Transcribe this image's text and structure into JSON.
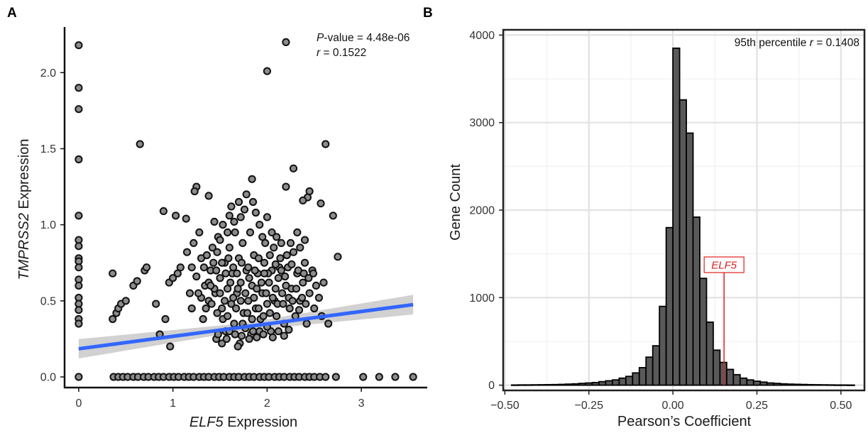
{
  "panels": {
    "a_label": "A",
    "b_label": "B"
  },
  "chart_data": [
    {
      "type": "scatter",
      "panel": "A",
      "xlabel_gene": "ELF5",
      "xlabel_suffix": " Expression",
      "ylabel_gene": "TMPRSS2",
      "ylabel_suffix": " Expression",
      "xlim": [
        -0.15,
        3.7
      ],
      "ylim": [
        -0.07,
        2.3
      ],
      "x_ticks": [
        0,
        1,
        2,
        3
      ],
      "x_tick_labels": [
        "0",
        "1",
        "2",
        "3"
      ],
      "y_ticks": [
        0.0,
        0.5,
        1.0,
        1.5,
        2.0
      ],
      "y_tick_labels": [
        "0.0",
        "0.5",
        "1.0",
        "1.5",
        "2.0"
      ],
      "annotation": {
        "p_prefix": "P",
        "p_suffix": "-value = 4.48e-06",
        "r_prefix": "r",
        "r_suffix": " = 0.1522"
      },
      "regression": {
        "x": [
          0,
          3.55
        ],
        "y": [
          0.185,
          0.475
        ],
        "color": "#3366ff",
        "ci_color": "#c9c9c9"
      },
      "point_fill": "#8c8c8c",
      "point_stroke": "#111111",
      "points": [
        [
          0,
          2.18
        ],
        [
          0,
          1.9
        ],
        [
          0,
          1.76
        ],
        [
          0,
          1.43
        ],
        [
          0,
          1.06
        ],
        [
          0,
          0.9
        ],
        [
          0,
          0.86
        ],
        [
          0,
          0.78
        ],
        [
          0,
          0.76
        ],
        [
          0,
          0.72
        ],
        [
          0,
          0.64
        ],
        [
          0,
          0.6
        ],
        [
          0,
          0.52
        ],
        [
          0,
          0.48
        ],
        [
          0,
          0.44
        ],
        [
          0,
          0.38
        ],
        [
          0,
          0.35
        ],
        [
          0,
          0.0
        ],
        [
          0.37,
          0.0
        ],
        [
          0.42,
          0.0
        ],
        [
          0.47,
          0.0
        ],
        [
          0.52,
          0.0
        ],
        [
          0.58,
          0.0
        ],
        [
          0.63,
          0.0
        ],
        [
          0.69,
          0.0
        ],
        [
          0.74,
          0.0
        ],
        [
          0.8,
          0.0
        ],
        [
          0.85,
          0.0
        ],
        [
          0.9,
          0.0
        ],
        [
          0.96,
          0.0
        ],
        [
          1.01,
          0.0
        ],
        [
          1.06,
          0.0
        ],
        [
          1.12,
          0.0
        ],
        [
          1.17,
          0.0
        ],
        [
          1.22,
          0.0
        ],
        [
          1.28,
          0.0
        ],
        [
          1.33,
          0.0
        ],
        [
          1.38,
          0.0
        ],
        [
          1.44,
          0.0
        ],
        [
          1.49,
          0.0
        ],
        [
          1.54,
          0.0
        ],
        [
          1.6,
          0.0
        ],
        [
          1.65,
          0.0
        ],
        [
          1.7,
          0.0
        ],
        [
          1.76,
          0.0
        ],
        [
          1.81,
          0.0
        ],
        [
          1.86,
          0.0
        ],
        [
          1.92,
          0.0
        ],
        [
          1.97,
          0.0
        ],
        [
          2.02,
          0.0
        ],
        [
          2.08,
          0.0
        ],
        [
          2.13,
          0.0
        ],
        [
          2.18,
          0.0
        ],
        [
          2.24,
          0.0
        ],
        [
          2.29,
          0.0
        ],
        [
          2.34,
          0.0
        ],
        [
          2.4,
          0.0
        ],
        [
          2.45,
          0.0
        ],
        [
          2.5,
          0.0
        ],
        [
          2.56,
          0.0
        ],
        [
          2.62,
          0.0
        ],
        [
          2.73,
          0.0
        ],
        [
          3.02,
          0.0
        ],
        [
          3.19,
          0.0
        ],
        [
          3.36,
          0.0
        ],
        [
          3.55,
          0.0
        ],
        [
          2.2,
          2.2
        ],
        [
          2.0,
          2.01
        ],
        [
          0.65,
          1.53
        ],
        [
          2.62,
          1.53
        ],
        [
          2.28,
          1.37
        ],
        [
          1.84,
          1.3
        ],
        [
          2.2,
          1.25
        ],
        [
          1.25,
          1.25
        ],
        [
          1.23,
          1.22
        ],
        [
          1.38,
          1.19
        ],
        [
          2.45,
          1.22
        ],
        [
          2.43,
          1.18
        ],
        [
          2.38,
          1.16
        ],
        [
          0.9,
          1.09
        ],
        [
          1.03,
          1.06
        ],
        [
          1.6,
          1.06
        ],
        [
          2.57,
          1.14
        ],
        [
          2.7,
          1.06
        ],
        [
          1.14,
          1.04
        ],
        [
          1.65,
          1.02
        ],
        [
          0.36,
          0.38
        ],
        [
          0.4,
          0.42
        ],
        [
          0.42,
          0.45
        ],
        [
          0.45,
          0.48
        ],
        [
          0.5,
          0.5
        ],
        [
          0.58,
          0.6
        ],
        [
          0.62,
          0.63
        ],
        [
          0.7,
          0.7
        ],
        [
          0.72,
          0.72
        ],
        [
          0.36,
          0.68
        ],
        [
          0.82,
          0.48
        ],
        [
          0.86,
          0.28
        ],
        [
          0.92,
          0.38
        ],
        [
          0.97,
          0.2
        ],
        [
          0.96,
          0.62
        ],
        [
          1.0,
          0.65
        ],
        [
          1.05,
          0.68
        ],
        [
          1.08,
          0.72
        ],
        [
          1.15,
          0.82
        ],
        [
          1.18,
          0.55
        ],
        [
          1.2,
          0.45
        ],
        [
          1.22,
          0.88
        ],
        [
          1.28,
          0.95
        ],
        [
          1.3,
          0.78
        ],
        [
          1.32,
          0.38
        ],
        [
          1.34,
          0.6
        ],
        [
          1.38,
          0.5
        ],
        [
          1.4,
          0.7
        ],
        [
          1.42,
          0.85
        ],
        [
          1.45,
          0.55
        ],
        [
          1.46,
          0.25
        ],
        [
          1.48,
          0.92
        ],
        [
          1.5,
          0.65
        ],
        [
          1.52,
          0.45
        ],
        [
          1.55,
          0.75
        ],
        [
          1.56,
          0.3
        ],
        [
          1.58,
          0.58
        ],
        [
          1.6,
          0.85
        ],
        [
          1.62,
          0.48
        ],
        [
          1.63,
          0.68
        ],
        [
          1.65,
          0.35
        ],
        [
          1.66,
          0.95
        ],
        [
          1.68,
          0.55
        ],
        [
          1.7,
          0.78
        ],
        [
          1.71,
          0.22
        ],
        [
          1.72,
          0.62
        ],
        [
          1.74,
          0.88
        ],
        [
          1.75,
          0.42
        ],
        [
          1.76,
          1.1
        ],
        [
          1.78,
          0.7
        ],
        [
          1.8,
          0.5
        ],
        [
          1.82,
          0.95
        ],
        [
          1.83,
          0.28
        ],
        [
          1.84,
          0.6
        ],
        [
          1.86,
          0.8
        ],
        [
          1.88,
          0.45
        ],
        [
          1.9,
          0.68
        ],
        [
          1.92,
          1.0
        ],
        [
          1.93,
          0.38
        ],
        [
          1.95,
          0.55
        ],
        [
          1.97,
          0.75
        ],
        [
          1.98,
          0.88
        ],
        [
          2.0,
          0.48
        ],
        [
          2.02,
          0.62
        ],
        [
          2.04,
          0.3
        ],
        [
          2.05,
          0.7
        ],
        [
          2.07,
          0.85
        ],
        [
          2.08,
          0.5
        ],
        [
          2.1,
          0.4
        ],
        [
          2.12,
          0.65
        ],
        [
          2.14,
          0.78
        ],
        [
          2.16,
          0.55
        ],
        [
          2.18,
          0.35
        ],
        [
          2.2,
          0.6
        ],
        [
          2.22,
          0.72
        ],
        [
          2.24,
          0.45
        ],
        [
          2.26,
          0.58
        ],
        [
          2.28,
          0.82
        ],
        [
          2.3,
          0.4
        ],
        [
          2.32,
          0.68
        ],
        [
          2.35,
          0.5
        ],
        [
          2.38,
          0.62
        ],
        [
          2.4,
          0.75
        ],
        [
          2.42,
          0.35
        ],
        [
          2.45,
          0.55
        ],
        [
          2.48,
          0.7
        ],
        [
          2.5,
          0.45
        ],
        [
          2.52,
          0.6
        ],
        [
          2.55,
          0.52
        ],
        [
          2.58,
          0.4
        ],
        [
          2.6,
          0.62
        ],
        [
          2.65,
          0.35
        ],
        [
          2.75,
          0.79
        ],
        [
          1.44,
          1.02
        ],
        [
          1.47,
          0.82
        ],
        [
          1.5,
          0.9
        ],
        [
          1.53,
          1.0
        ],
        [
          1.58,
          0.95
        ],
        [
          1.62,
          1.12
        ],
        [
          1.7,
          1.15
        ],
        [
          1.72,
          1.05
        ],
        [
          1.78,
          1.2
        ],
        [
          1.85,
          1.15
        ],
        [
          1.88,
          1.08
        ],
        [
          1.95,
          0.92
        ],
        [
          2.0,
          1.05
        ],
        [
          2.05,
          0.95
        ],
        [
          2.1,
          0.92
        ],
        [
          2.15,
          0.88
        ],
        [
          2.25,
          0.88
        ],
        [
          2.32,
          0.95
        ],
        [
          2.35,
          0.85
        ],
        [
          2.4,
          0.9
        ],
        [
          1.3,
          0.52
        ],
        [
          1.35,
          0.45
        ],
        [
          1.38,
          0.62
        ],
        [
          1.41,
          0.48
        ],
        [
          1.44,
          0.58
        ],
        [
          1.47,
          0.42
        ],
        [
          1.5,
          0.55
        ],
        [
          1.53,
          0.38
        ],
        [
          1.55,
          0.5
        ],
        [
          1.58,
          0.4
        ],
        [
          1.61,
          0.62
        ],
        [
          1.64,
          0.52
        ],
        [
          1.67,
          0.45
        ],
        [
          1.69,
          0.58
        ],
        [
          1.72,
          0.5
        ],
        [
          1.74,
          0.35
        ],
        [
          1.77,
          0.55
        ],
        [
          1.79,
          0.42
        ],
        [
          1.81,
          0.65
        ],
        [
          1.84,
          0.38
        ],
        [
          1.86,
          0.52
        ],
        [
          1.89,
          0.58
        ],
        [
          1.91,
          0.45
        ],
        [
          1.94,
          0.62
        ],
        [
          1.96,
          0.4
        ],
        [
          1.99,
          0.55
        ],
        [
          2.01,
          0.68
        ],
        [
          2.03,
          0.42
        ],
        [
          2.06,
          0.52
        ],
        [
          2.09,
          0.58
        ],
        [
          2.11,
          0.48
        ],
        [
          2.13,
          0.72
        ],
        [
          2.17,
          0.48
        ],
        [
          2.19,
          0.66
        ],
        [
          2.23,
          0.52
        ],
        [
          2.27,
          0.5
        ],
        [
          2.31,
          0.58
        ],
        [
          2.34,
          0.44
        ],
        [
          2.37,
          0.52
        ],
        [
          2.41,
          0.48
        ],
        [
          1.48,
          0.28
        ],
        [
          1.52,
          0.22
        ],
        [
          1.57,
          0.25
        ],
        [
          1.6,
          0.3
        ],
        [
          1.66,
          0.28
        ],
        [
          1.69,
          0.2
        ],
        [
          1.73,
          0.27
        ],
        [
          1.77,
          0.32
        ],
        [
          1.81,
          0.25
        ],
        [
          1.85,
          0.3
        ],
        [
          1.89,
          0.26
        ],
        [
          1.92,
          0.3
        ],
        [
          1.96,
          0.28
        ],
        [
          2.0,
          0.33
        ],
        [
          2.06,
          0.26
        ],
        [
          2.12,
          0.3
        ],
        [
          2.18,
          0.27
        ],
        [
          2.23,
          0.31
        ],
        [
          1.2,
          0.72
        ],
        [
          1.25,
          0.66
        ],
        [
          1.27,
          0.55
        ],
        [
          1.33,
          0.72
        ],
        [
          1.36,
          0.8
        ],
        [
          1.4,
          0.6
        ],
        [
          1.43,
          0.75
        ],
        [
          1.46,
          0.7
        ],
        [
          1.52,
          0.75
        ],
        [
          1.56,
          0.68
        ],
        [
          1.59,
          0.78
        ],
        [
          1.64,
          0.72
        ],
        [
          1.68,
          0.68
        ],
        [
          1.73,
          0.75
        ],
        [
          1.8,
          0.72
        ],
        [
          1.87,
          0.7
        ],
        [
          1.91,
          0.78
        ],
        [
          1.97,
          0.68
        ],
        [
          2.03,
          0.8
        ],
        [
          2.09,
          0.74
        ],
        [
          2.15,
          0.7
        ],
        [
          2.21,
          0.8
        ],
        [
          2.26,
          0.74
        ],
        [
          2.33,
          0.7
        ],
        [
          2.39,
          0.68
        ],
        [
          2.44,
          0.65
        ],
        [
          2.49,
          0.68
        ]
      ]
    },
    {
      "type": "bar",
      "panel": "B",
      "subtype": "histogram",
      "xlabel": "Pearson’s Coefficient",
      "ylabel": "Gene Count",
      "xlim": [
        -0.505,
        0.57
      ],
      "ylim": [
        -60,
        4060
      ],
      "x_ticks": [
        -0.5,
        -0.25,
        0,
        0.25,
        0.5
      ],
      "x_tick_labels": [
        "−0.50",
        "−0.25",
        "0.00",
        "0.25",
        "0.50"
      ],
      "y_ticks": [
        0,
        1000,
        2000,
        3000,
        4000
      ],
      "y_tick_labels": [
        "0",
        "1000",
        "2000",
        "3000",
        "4000"
      ],
      "grid": true,
      "annotation": {
        "text_prefix": "95th percentile ",
        "r_prefix": "r",
        "r_suffix": " = 0.1408"
      },
      "marker": {
        "label": "ELF5",
        "x": 0.1522,
        "color": "#e02020"
      },
      "bar_fill": "#595959",
      "bar_stroke": "#000000",
      "bin_width": 0.02,
      "bin_centers": [
        -0.47,
        -0.45,
        -0.43,
        -0.41,
        -0.39,
        -0.37,
        -0.35,
        -0.33,
        -0.31,
        -0.29,
        -0.27,
        -0.25,
        -0.23,
        -0.21,
        -0.19,
        -0.17,
        -0.15,
        -0.13,
        -0.11,
        -0.09,
        -0.07,
        -0.05,
        -0.03,
        -0.01,
        0.01,
        0.03,
        0.05,
        0.07,
        0.09,
        0.11,
        0.13,
        0.15,
        0.17,
        0.19,
        0.21,
        0.23,
        0.25,
        0.27,
        0.29,
        0.31,
        0.33,
        0.35,
        0.37,
        0.39,
        0.41,
        0.43,
        0.45,
        0.47,
        0.49,
        0.51,
        0.53
      ],
      "counts": [
        2,
        3,
        3,
        4,
        5,
        6,
        7,
        9,
        12,
        15,
        20,
        25,
        30,
        40,
        50,
        60,
        80,
        100,
        140,
        200,
        320,
        450,
        900,
        1800,
        3850,
        3260,
        2880,
        1920,
        1220,
        720,
        400,
        260,
        180,
        120,
        80,
        60,
        45,
        35,
        25,
        20,
        15,
        12,
        10,
        8,
        6,
        5,
        4,
        3,
        2,
        2,
        1
      ]
    }
  ]
}
